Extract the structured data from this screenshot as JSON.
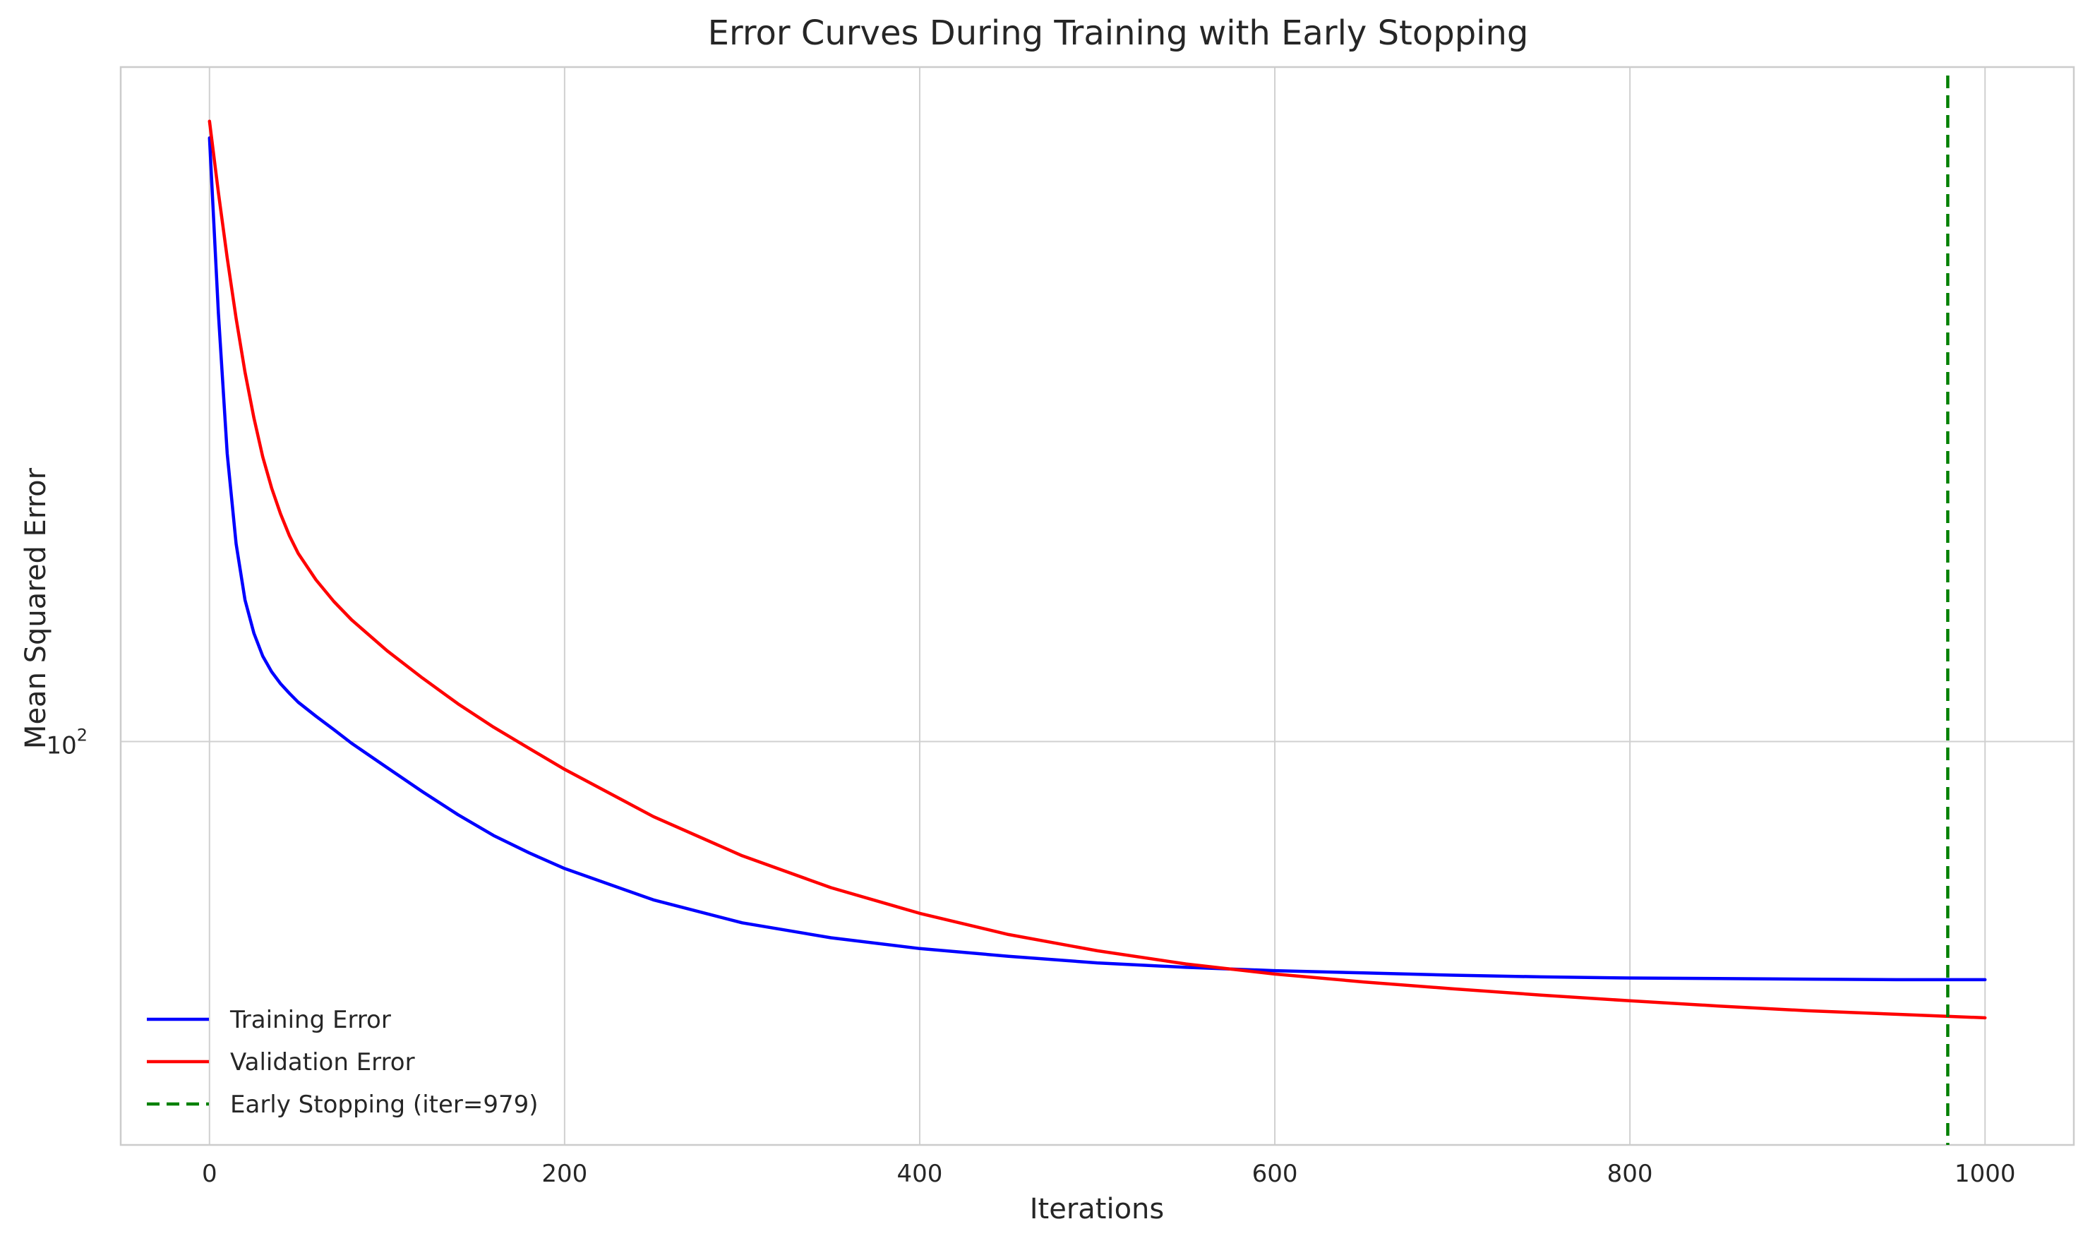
{
  "chart_data": {
    "type": "line",
    "title": "Error Curves During Training with Early Stopping",
    "xlabel": "Iterations",
    "ylabel": "Mean Squared Error",
    "xlim": [
      -50,
      1050
    ],
    "ylim": [
      62.4,
      220
    ],
    "yscale": "log",
    "grid": true,
    "legend_position": "lower-left",
    "x_ticks": [
      0,
      200,
      400,
      600,
      800,
      1000
    ],
    "x_tick_labels": [
      "0",
      "200",
      "400",
      "600",
      "800",
      "1000"
    ],
    "y_ticks": [
      100
    ],
    "y_tick_labels": [
      {
        "base": "10",
        "exp": "2"
      }
    ],
    "colors": {
      "training": "#0000ff",
      "validation": "#ff0000",
      "early_stopping": "#008000",
      "grid": "#d0d0d0",
      "axis": "#cccccc",
      "text": "#262626"
    },
    "series": [
      {
        "name": "Training Error",
        "color": "#0000ff",
        "x": [
          0,
          5,
          10,
          15,
          20,
          25,
          30,
          35,
          40,
          45,
          50,
          60,
          70,
          80,
          100,
          120,
          140,
          160,
          180,
          200,
          250,
          300,
          350,
          400,
          450,
          500,
          550,
          600,
          650,
          700,
          750,
          800,
          850,
          900,
          950,
          1000
        ],
        "values": [
          202.5,
          165,
          140,
          126,
          118,
          113.5,
          110.5,
          108.5,
          107,
          105.8,
          104.7,
          103,
          101.4,
          99.8,
          97.0,
          94.3,
          91.8,
          89.6,
          87.8,
          86.2,
          83.1,
          80.9,
          79.5,
          78.5,
          77.8,
          77.2,
          76.8,
          76.5,
          76.3,
          76.1,
          75.95,
          75.85,
          75.8,
          75.75,
          75.7,
          75.7
        ]
      },
      {
        "name": "Validation Error",
        "color": "#ff0000",
        "x": [
          0,
          5,
          10,
          15,
          20,
          25,
          30,
          35,
          40,
          45,
          50,
          60,
          70,
          80,
          100,
          120,
          140,
          160,
          180,
          200,
          250,
          300,
          350,
          400,
          450,
          500,
          550,
          600,
          650,
          700,
          750,
          800,
          850,
          900,
          950,
          1000
        ],
        "values": [
          206.5,
          190,
          176,
          164,
          154,
          146,
          139.5,
          134.5,
          130.5,
          127.2,
          124.6,
          120.8,
          117.8,
          115.3,
          111.2,
          107.7,
          104.5,
          101.7,
          99.2,
          96.8,
          91.6,
          87.5,
          84.3,
          81.8,
          79.8,
          78.3,
          77.1,
          76.2,
          75.5,
          74.9,
          74.35,
          73.85,
          73.4,
          73.0,
          72.7,
          72.4
        ]
      }
    ],
    "vertical_lines": [
      {
        "name": "Early Stopping (iter=979)",
        "x": 979,
        "color": "#008000",
        "style": "dashed"
      }
    ],
    "legend": [
      {
        "label": "Training Error",
        "color": "#0000ff",
        "style": "solid"
      },
      {
        "label": "Validation Error",
        "color": "#ff0000",
        "style": "solid"
      },
      {
        "label": "Early Stopping (iter=979)",
        "color": "#008000",
        "style": "dashed"
      }
    ]
  }
}
